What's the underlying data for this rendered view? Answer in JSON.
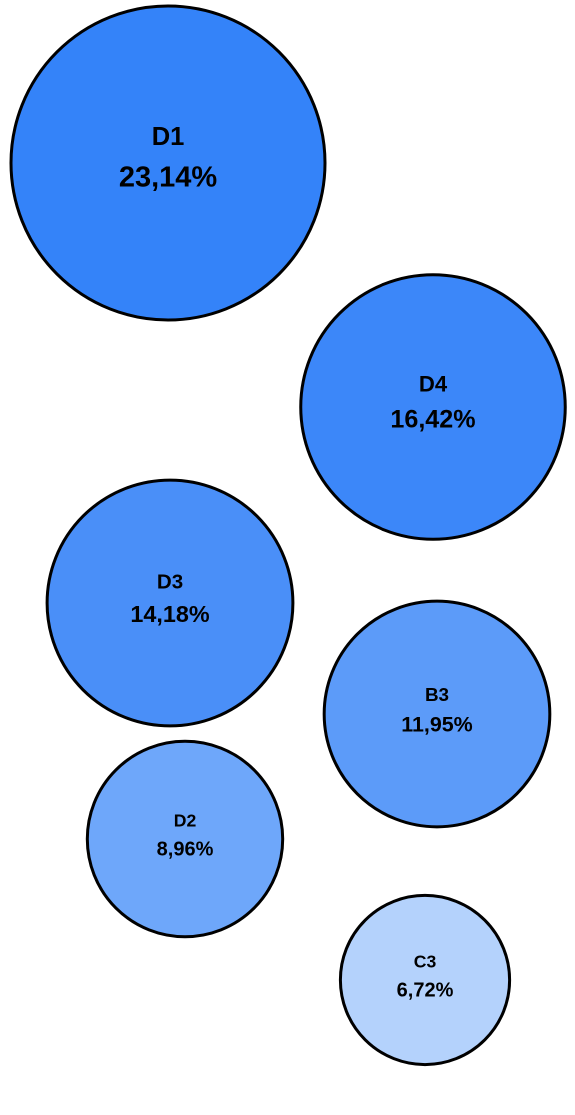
{
  "chart_data": {
    "type": "bubble",
    "title": "",
    "bubbles": [
      {
        "label": "D1",
        "value": 23.14,
        "value_text": "23,14%",
        "color": "#3483F9"
      },
      {
        "label": "D4",
        "value": 16.42,
        "value_text": "16,42%",
        "color": "#3C87F9"
      },
      {
        "label": "D3",
        "value": 14.18,
        "value_text": "14,18%",
        "color": "#4A8FF8"
      },
      {
        "label": "B3",
        "value": 11.95,
        "value_text": "11,95%",
        "color": "#5C9BF9"
      },
      {
        "label": "D2",
        "value": 8.96,
        "value_text": "8,96%",
        "color": "#6EA7FA"
      },
      {
        "label": "C3",
        "value": 6.72,
        "value_text": "6,72%",
        "color": "#B4D2FC"
      }
    ],
    "stroke_color": "#000000"
  }
}
